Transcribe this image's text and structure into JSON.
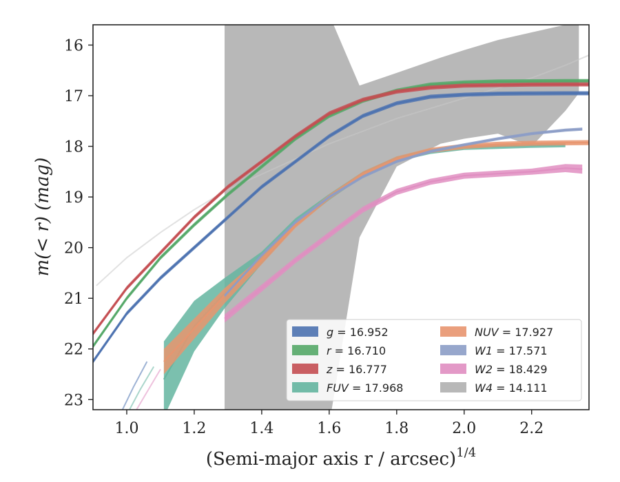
{
  "chart_data": {
    "type": "line",
    "xlabel": "(Semi-major axis r / arcsec)",
    "xlabel_superscript": "1/4",
    "ylabel": "m(< r) (mag)",
    "xlim": [
      0.9,
      2.37
    ],
    "ylim": [
      23.2,
      15.6
    ],
    "y_inverted": true,
    "grid": false,
    "legend_placement": "bottom-right",
    "legend_columns": 2,
    "x_ticks": [
      1.0,
      1.2,
      1.4,
      1.6,
      1.8,
      2.0,
      2.2
    ],
    "x_tick_labels": [
      "1.0",
      "1.2",
      "1.4",
      "1.6",
      "1.8",
      "2.0",
      "2.2"
    ],
    "y_ticks": [
      16,
      17,
      18,
      19,
      20,
      21,
      22,
      23
    ],
    "y_tick_labels": [
      "16",
      "17",
      "18",
      "19",
      "20",
      "21",
      "22",
      "23"
    ],
    "series": [
      {
        "name": "g = 16.952",
        "band": "g",
        "total_mag": "16.952",
        "color": "#4c72b0",
        "x": [
          0.9,
          1.0,
          1.1,
          1.2,
          1.3,
          1.4,
          1.5,
          1.6,
          1.7,
          1.8,
          1.9,
          2.0,
          2.1,
          2.2,
          2.3,
          2.37
        ],
        "y": [
          22.25,
          21.3,
          20.6,
          20.0,
          19.4,
          18.8,
          18.3,
          17.8,
          17.4,
          17.15,
          17.02,
          16.98,
          16.96,
          16.955,
          16.952,
          16.952
        ],
        "halfwidth": [
          0.04,
          0.04,
          0.04,
          0.04,
          0.04,
          0.04,
          0.04,
          0.04,
          0.04,
          0.04,
          0.04,
          0.04,
          0.04,
          0.04,
          0.04,
          0.04
        ]
      },
      {
        "name": "r = 16.710",
        "band": "r",
        "total_mag": "16.710",
        "color": "#55a868",
        "x": [
          0.9,
          1.0,
          1.1,
          1.2,
          1.3,
          1.4,
          1.5,
          1.6,
          1.7,
          1.8,
          1.9,
          2.0,
          2.1,
          2.2,
          2.3,
          2.37
        ],
        "y": [
          21.95,
          21.0,
          20.2,
          19.55,
          18.95,
          18.4,
          17.85,
          17.4,
          17.1,
          16.9,
          16.78,
          16.74,
          16.72,
          16.715,
          16.71,
          16.71
        ],
        "halfwidth": [
          0.04,
          0.04,
          0.04,
          0.04,
          0.04,
          0.04,
          0.04,
          0.04,
          0.04,
          0.04,
          0.04,
          0.04,
          0.04,
          0.04,
          0.04,
          0.04
        ]
      },
      {
        "name": "z = 16.777",
        "band": "z",
        "total_mag": "16.777",
        "color": "#c44e52",
        "x": [
          0.9,
          1.0,
          1.1,
          1.2,
          1.3,
          1.4,
          1.5,
          1.6,
          1.7,
          1.8,
          1.9,
          2.0,
          2.1,
          2.2,
          2.3,
          2.37
        ],
        "y": [
          21.7,
          20.8,
          20.1,
          19.4,
          18.8,
          18.3,
          17.8,
          17.35,
          17.08,
          16.92,
          16.84,
          16.8,
          16.79,
          16.78,
          16.777,
          16.777
        ],
        "halfwidth": [
          0.04,
          0.04,
          0.04,
          0.04,
          0.04,
          0.04,
          0.04,
          0.04,
          0.04,
          0.04,
          0.04,
          0.04,
          0.04,
          0.04,
          0.04,
          0.04
        ]
      },
      {
        "name": "FUV = 17.968",
        "band": "FUV",
        "total_mag": "17.968",
        "color": "#64b5a0",
        "x": [
          1.11,
          1.2,
          1.29,
          1.4,
          1.5,
          1.6,
          1.7,
          1.8,
          1.9,
          2.0,
          2.1,
          2.2,
          2.3
        ],
        "y": [
          22.6,
          21.55,
          20.9,
          20.2,
          19.5,
          19.0,
          18.55,
          18.25,
          18.1,
          18.02,
          18.0,
          17.98,
          17.968
        ],
        "halfwidth": [
          0.75,
          0.5,
          0.3,
          0.12,
          0.08,
          0.06,
          0.05,
          0.05,
          0.05,
          0.05,
          0.05,
          0.05,
          0.05
        ]
      },
      {
        "name": "NUV = 17.927",
        "band": "NUV",
        "total_mag": "17.927",
        "color": "#e8956f",
        "x": [
          1.11,
          1.2,
          1.29,
          1.4,
          1.5,
          1.6,
          1.7,
          1.8,
          1.9,
          2.0,
          2.1,
          2.2,
          2.3,
          2.37
        ],
        "y": [
          22.25,
          21.6,
          20.95,
          20.25,
          19.55,
          19.0,
          18.55,
          18.25,
          18.08,
          18.0,
          17.96,
          17.94,
          17.93,
          17.927
        ],
        "halfwidth": [
          0.25,
          0.2,
          0.15,
          0.08,
          0.06,
          0.05,
          0.05,
          0.05,
          0.05,
          0.05,
          0.05,
          0.05,
          0.05,
          0.05
        ]
      },
      {
        "name": "W1 = 17.571",
        "band": "W1",
        "total_mag": "17.571",
        "color": "#8c9dc7",
        "x": [
          1.29,
          1.4,
          1.5,
          1.6,
          1.7,
          1.8,
          1.9,
          2.0,
          2.1,
          2.2,
          2.3,
          2.35
        ],
        "y": [
          20.95,
          20.15,
          19.5,
          19.0,
          18.6,
          18.3,
          18.1,
          17.97,
          17.85,
          17.75,
          17.68,
          17.66
        ],
        "halfwidth": [
          0.03,
          0.03,
          0.03,
          0.03,
          0.03,
          0.03,
          0.03,
          0.03,
          0.03,
          0.03,
          0.03,
          0.03
        ]
      },
      {
        "name": "W2 = 18.429",
        "band": "W2",
        "total_mag": "18.429",
        "color": "#e08ec1",
        "x": [
          1.29,
          1.4,
          1.5,
          1.6,
          1.7,
          1.8,
          1.9,
          2.0,
          2.1,
          2.2,
          2.3,
          2.35
        ],
        "y": [
          21.4,
          20.8,
          20.25,
          19.75,
          19.25,
          18.9,
          18.7,
          18.58,
          18.54,
          18.5,
          18.43,
          18.45
        ],
        "halfwidth": [
          0.08,
          0.07,
          0.06,
          0.06,
          0.06,
          0.06,
          0.06,
          0.06,
          0.06,
          0.06,
          0.08,
          0.09
        ]
      },
      {
        "name": "W4 = 14.111",
        "band": "W4",
        "total_mag": "14.111",
        "color": "#b8b8b8",
        "x": [
          1.29,
          1.6,
          1.69,
          1.8,
          1.93,
          2.0,
          2.1,
          2.2,
          2.3,
          2.34
        ],
        "y_upper": [
          15.0,
          15.4,
          16.8,
          16.55,
          16.25,
          16.1,
          15.9,
          15.75,
          15.6,
          15.6
        ],
        "y_lower": [
          23.5,
          23.5,
          19.8,
          18.4,
          17.95,
          17.85,
          17.75,
          18.0,
          17.3,
          16.95
        ]
      }
    ],
    "model_curves": [
      {
        "color": "#c8c8c8",
        "x": [
          0.91,
          1.0,
          1.1,
          1.2,
          1.3,
          1.4,
          1.5,
          1.6,
          1.7,
          1.8,
          1.9,
          2.0,
          2.1,
          2.2,
          2.3,
          2.37
        ],
        "y": [
          20.75,
          20.2,
          19.7,
          19.25,
          18.85,
          18.55,
          18.25,
          17.95,
          17.7,
          17.45,
          17.25,
          17.05,
          16.85,
          16.65,
          16.4,
          16.2
        ]
      },
      {
        "color": "#4c72b0",
        "x": [
          0.98,
          1.02,
          1.06
        ],
        "y": [
          23.3,
          22.75,
          22.25
        ]
      },
      {
        "color": "#64b5a0",
        "x": [
          1.0,
          1.04,
          1.08
        ],
        "y": [
          23.3,
          22.8,
          22.35
        ]
      },
      {
        "color": "#e08ec1",
        "x": [
          1.02,
          1.06,
          1.1
        ],
        "y": [
          23.3,
          22.85,
          22.4
        ]
      }
    ]
  }
}
